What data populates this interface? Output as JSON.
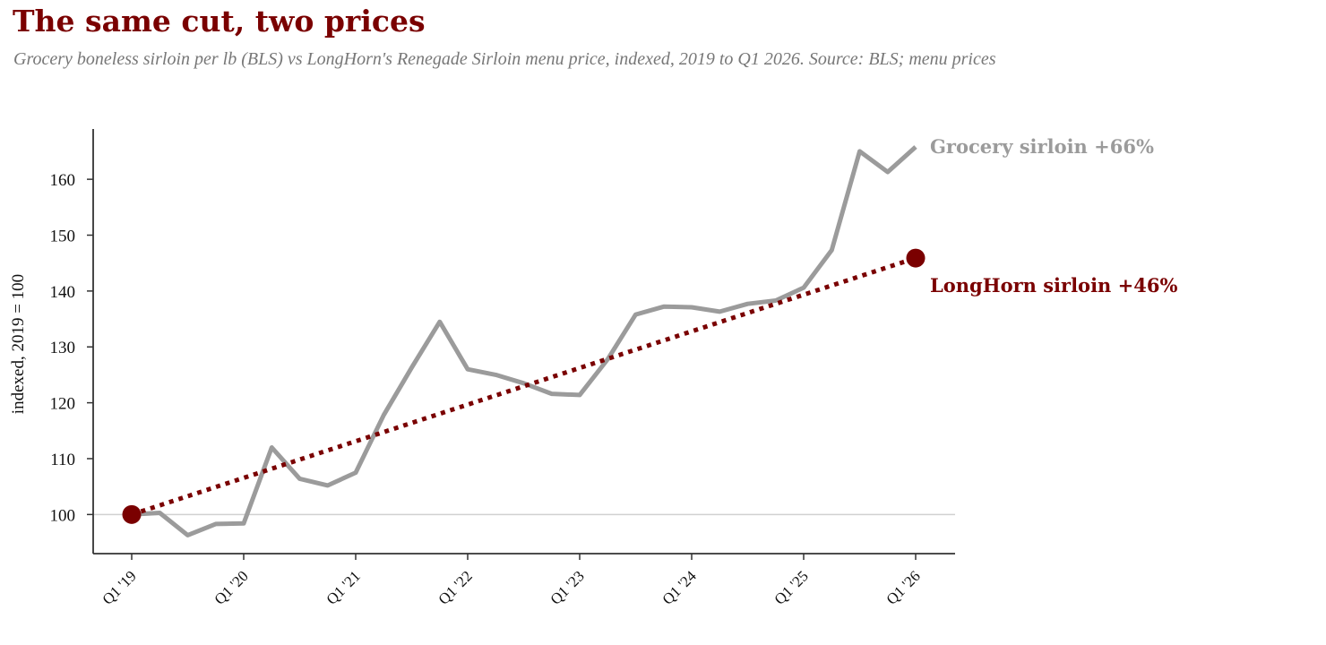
{
  "title": "The same cut, two prices",
  "subtitle": "Grocery boneless sirloin per lb (BLS) vs LongHorn's Renegade Sirloin menu price, indexed, 2019 to Q1 2026. Source: BLS; menu prices",
  "colors": {
    "title": "#7a0000",
    "grocery": "#9b9b9b",
    "longhorn": "#7a0000",
    "baseline": "#d0d0d0",
    "axis": "#333333"
  },
  "chart_data": {
    "type": "line",
    "ylabel": "indexed, 2019 = 100",
    "xlabel": "",
    "ylim": [
      93,
      169
    ],
    "yticks": [
      100,
      110,
      120,
      130,
      140,
      150,
      160
    ],
    "x_tick_labels": [
      "Q1 '19",
      "Q1 '20",
      "Q1 '21",
      "Q1 '22",
      "Q1 '23",
      "Q1 '24",
      "Q1 '25",
      "Q1 '26"
    ],
    "x_quarters": [
      "Q1 '19",
      "Q2 '19",
      "Q3 '19",
      "Q4 '19",
      "Q1 '20",
      "Q2 '20",
      "Q3 '20",
      "Q4 '20",
      "Q1 '21",
      "Q2 '21",
      "Q3 '21",
      "Q4 '21",
      "Q1 '22",
      "Q2 '22",
      "Q3 '22",
      "Q4 '22",
      "Q1 '23",
      "Q2 '23",
      "Q3 '23",
      "Q4 '23",
      "Q1 '24",
      "Q2 '24",
      "Q3 '24",
      "Q4 '24",
      "Q1 '25",
      "Q2 '25",
      "Q3 '25",
      "Q4 '25",
      "Q1 '26"
    ],
    "baseline": 100,
    "grid": false,
    "series": [
      {
        "name": "Grocery sirloin",
        "label": "+66%",
        "style": "solid",
        "values": [
          100,
          100.3,
          96.3,
          98.3,
          98.4,
          112.0,
          106.4,
          105.2,
          107.5,
          117.8,
          126.3,
          134.5,
          126.0,
          125.0,
          123.5,
          121.6,
          121.4,
          127.8,
          135.8,
          137.2,
          137.1,
          136.3,
          137.7,
          138.3,
          140.6,
          147.3,
          165.0,
          161.3,
          165.8
        ]
      },
      {
        "name": "LongHorn sirloin",
        "label": "+46%",
        "style": "dotted",
        "x_points": [
          "Q1 '19",
          "Q1 '26"
        ],
        "values": [
          100,
          145.9
        ]
      }
    ]
  }
}
